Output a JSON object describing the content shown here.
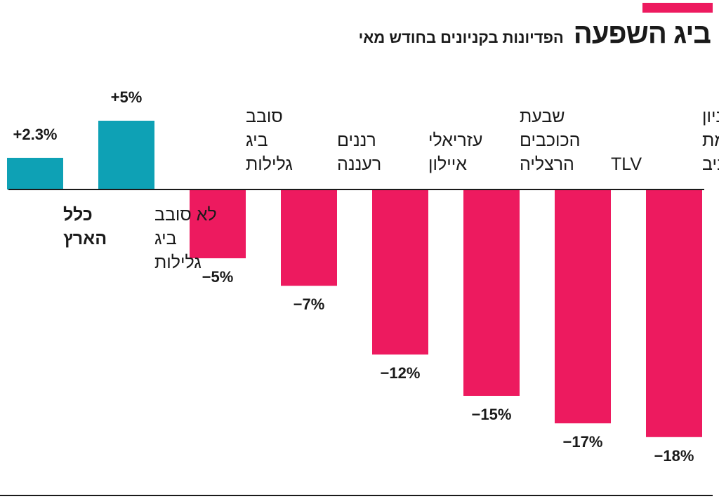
{
  "header": {
    "title": "ביג השפעה",
    "subtitle": "הפדיונות בקניונים בחודש מאי"
  },
  "colors": {
    "accent": "#ed1a5f",
    "negative": "#ed1a5f",
    "positive": "#0ea1b5",
    "text": "#1a1a1a"
  },
  "chart_data": {
    "type": "bar",
    "title": "ביג השפעה",
    "subtitle": "הפדיונות בקניונים בחודש מאי",
    "unit": "%",
    "xlabel": "",
    "ylabel": "",
    "ylim": [
      -18,
      5
    ],
    "grid": false,
    "legend": "none",
    "categories": [
      [
        "קניון",
        "רמת",
        "אביב"
      ],
      [
        "TLV"
      ],
      [
        "שבעת",
        "הכוכבים",
        "הרצליה"
      ],
      [
        "עזריאלי",
        "איילון"
      ],
      [
        "רננים",
        "רעננה"
      ],
      [
        "סובב",
        "ביג",
        "גלילות"
      ],
      [
        "לא סובב",
        "ביג",
        "גלילות"
      ],
      [
        "כלל",
        "הארץ"
      ]
    ],
    "values": [
      -18,
      -17,
      -15,
      -12,
      -7,
      -5,
      5,
      2.3
    ],
    "value_labels": [
      "−18%",
      "−17%",
      "−15%",
      "−12%",
      "−7%",
      "−5%",
      "+5%",
      "+2.3%"
    ],
    "bold_category_index": 7
  }
}
